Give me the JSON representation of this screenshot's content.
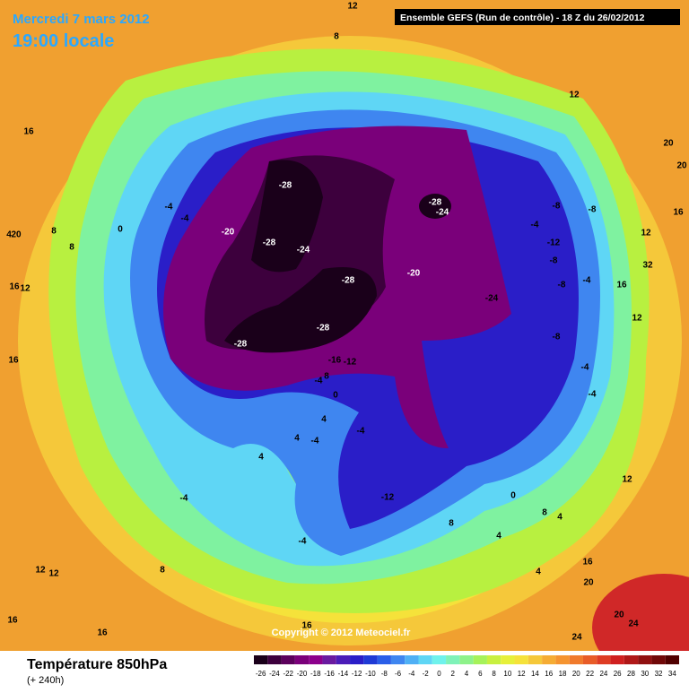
{
  "header": {
    "date": "Mercredi 7 mars 2012",
    "time": "19:00 locale",
    "run": "Ensemble GEFS (Run de contrôle)  -  18 Z du 26/02/2012"
  },
  "map": {
    "copyright": "Copyright © 2012 Meteociel.fr",
    "contour_labels": [
      "-28",
      "-28",
      "-24",
      "-20",
      "-28",
      "-28",
      "-28",
      "-28",
      "-24",
      "-20",
      "-24",
      "-16",
      "-12",
      "-8",
      "-8",
      "-4",
      "-12",
      "-8",
      "-4",
      "-8",
      "-8",
      "-4",
      "-4",
      "-4",
      "-4",
      "0",
      "8",
      "8",
      "16",
      "12",
      "4",
      "20",
      "16",
      "12",
      "8",
      "12",
      "20",
      "20",
      "16",
      "12",
      "32",
      "16",
      "12",
      "-4",
      "-4",
      "4",
      "-4",
      "-12",
      "0",
      "4",
      "8",
      "8",
      "-4",
      "8",
      "12",
      "12",
      "16",
      "16",
      "16",
      "16",
      "20",
      "20",
      "24",
      "24",
      "16",
      "8",
      "0",
      "4",
      "4",
      "4",
      "4",
      "-4",
      "12"
    ]
  },
  "legend": {
    "title": "Température 850hPa",
    "subtitle": "(+ 240h)",
    "scale": [
      {
        "value": -26,
        "color": "#1a001a"
      },
      {
        "value": -24,
        "color": "#3d003d"
      },
      {
        "value": -22,
        "color": "#5c005c"
      },
      {
        "value": -20,
        "color": "#7a007a"
      },
      {
        "value": -18,
        "color": "#8c008c"
      },
      {
        "value": -16,
        "color": "#6a1aa0"
      },
      {
        "value": -14,
        "color": "#4b1cb8"
      },
      {
        "value": -12,
        "color": "#2a1ec8"
      },
      {
        "value": -10,
        "color": "#1f3ad6"
      },
      {
        "value": -8,
        "color": "#2a5ee8"
      },
      {
        "value": -6,
        "color": "#3f86f0"
      },
      {
        "value": -4,
        "color": "#4fb0f5"
      },
      {
        "value": -2,
        "color": "#5fd6f5"
      },
      {
        "value": 0,
        "color": "#6ff2ec"
      },
      {
        "value": 2,
        "color": "#7ff2b8"
      },
      {
        "value": 4,
        "color": "#8ef28a"
      },
      {
        "value": 6,
        "color": "#a6f25a"
      },
      {
        "value": 8,
        "color": "#c8f040"
      },
      {
        "value": 10,
        "color": "#e6f03a"
      },
      {
        "value": 12,
        "color": "#f5e23a"
      },
      {
        "value": 14,
        "color": "#f5c83a"
      },
      {
        "value": 16,
        "color": "#f5ac34"
      },
      {
        "value": 18,
        "color": "#f59430"
      },
      {
        "value": 20,
        "color": "#f07a2c"
      },
      {
        "value": 22,
        "color": "#e85c28"
      },
      {
        "value": 24,
        "color": "#de3c24"
      },
      {
        "value": 26,
        "color": "#d02020"
      },
      {
        "value": 28,
        "color": "#b01818"
      },
      {
        "value": 30,
        "color": "#901010"
      },
      {
        "value": 32,
        "color": "#700808"
      },
      {
        "value": 34,
        "color": "#500000"
      }
    ]
  }
}
